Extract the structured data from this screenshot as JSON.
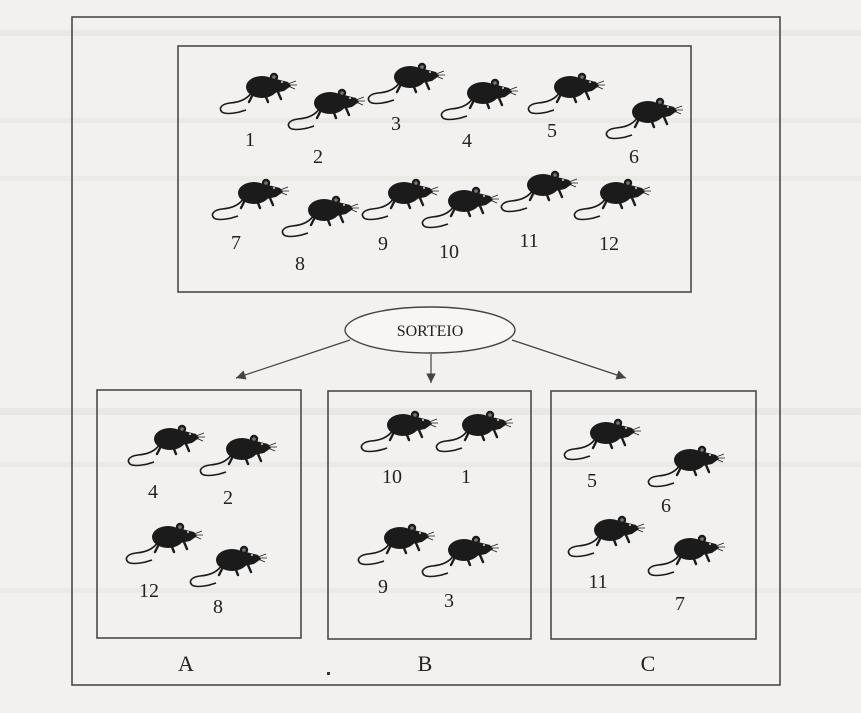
{
  "diagram": {
    "center_label": "SORTEIO",
    "population": [
      "1",
      "2",
      "3",
      "4",
      "5",
      "6",
      "7",
      "8",
      "9",
      "10",
      "11",
      "12"
    ],
    "groups": [
      {
        "label": "A",
        "members": [
          "4",
          "2",
          "12",
          "8"
        ]
      },
      {
        "label": "B",
        "members": [
          "10",
          "1",
          "9",
          "3"
        ]
      },
      {
        "label": "C",
        "members": [
          "5",
          "6",
          "11",
          "7"
        ]
      }
    ]
  },
  "colors": {
    "ink": "#222222",
    "paper": "#f2f1ef",
    "frame": "#4a4a4a"
  },
  "icons": {
    "rat": "rat-icon",
    "arrow": "arrow-down-icon"
  }
}
